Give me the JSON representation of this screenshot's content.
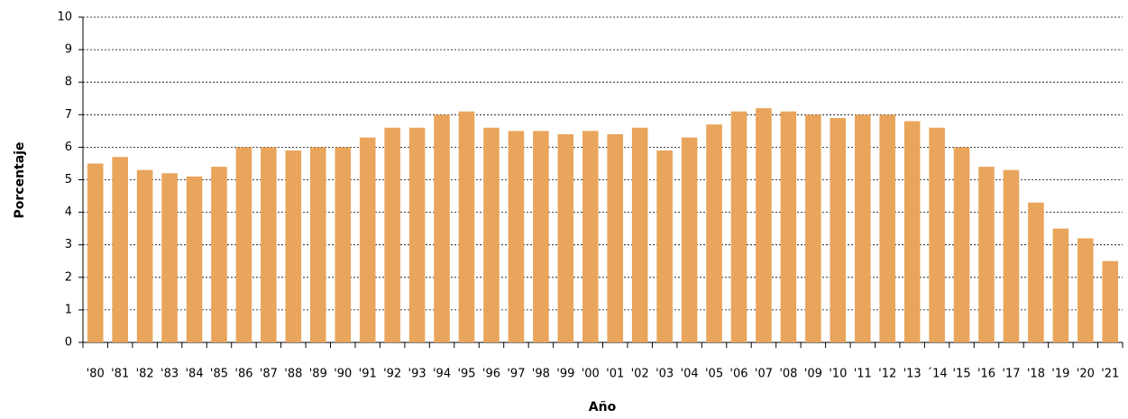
{
  "chart_data": {
    "type": "bar",
    "x_label": "Año",
    "y_label": "Porcentaje",
    "categories": [
      "'80",
      "'81",
      "'82",
      "'83",
      "'84",
      "'85",
      "'86",
      "'87",
      "'88",
      "'89",
      "'90",
      "'91",
      "'92",
      "'93",
      "'94",
      "'95",
      "'96",
      "'97",
      "'98",
      "'99",
      "'00",
      "'01",
      "'02",
      "'03",
      "'04",
      "'05",
      "'06",
      "'07",
      "'08",
      "'09",
      "'10",
      "'11",
      "'12",
      "'13",
      "´14",
      "'15",
      "'16",
      "'17",
      "'18",
      "'19",
      "'20",
      "'21"
    ],
    "values": [
      5.5,
      5.7,
      5.3,
      5.2,
      5.1,
      5.4,
      6.0,
      6.0,
      5.9,
      6.0,
      6.0,
      6.3,
      6.6,
      6.6,
      7.0,
      7.1,
      6.6,
      6.5,
      6.5,
      6.4,
      6.5,
      6.4,
      6.6,
      5.9,
      6.3,
      6.7,
      7.1,
      7.2,
      7.1,
      7.0,
      6.9,
      7.0,
      7.0,
      6.8,
      6.6,
      6.0,
      5.4,
      5.3,
      4.3,
      3.5,
      3.2,
      2.5
    ],
    "color": "#e9a55c",
    "ylim": [
      0,
      10
    ],
    "yticks": [
      0,
      1,
      2,
      3,
      4,
      5,
      6,
      7,
      8,
      9,
      10
    ],
    "grid": true
  }
}
